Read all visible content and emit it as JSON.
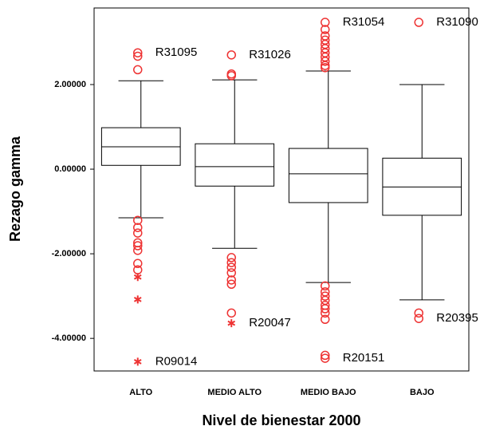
{
  "chart_data": {
    "type": "box",
    "xlabel": "Nivel de bienestar 2000",
    "ylabel": "Rezago gamma",
    "categories": [
      "ALTO",
      "MEDIO ALTO",
      "MEDIO BAJO",
      "BAJO"
    ],
    "whisker_low": [
      -1.15,
      -1.87,
      -2.68,
      -3.09
    ],
    "q1": [
      0.09,
      -0.4,
      -0.79,
      -1.09
    ],
    "median": [
      0.53,
      0.06,
      -0.11,
      -0.42
    ],
    "q3": [
      0.98,
      0.6,
      0.49,
      0.26
    ],
    "whisker_high": [
      2.09,
      2.11,
      2.32,
      2.0
    ],
    "outliers": [
      [
        {
          "value": 2.75,
          "marker": "circle",
          "label": "R31095"
        },
        {
          "value": 2.67,
          "marker": "circle"
        },
        {
          "value": 2.35,
          "marker": "circle"
        },
        {
          "value": -1.21,
          "marker": "circle"
        },
        {
          "value": -1.38,
          "marker": "circle"
        },
        {
          "value": -1.51,
          "marker": "circle"
        },
        {
          "value": -1.74,
          "marker": "circle"
        },
        {
          "value": -1.81,
          "marker": "circle"
        },
        {
          "value": -1.92,
          "marker": "circle"
        },
        {
          "value": -2.23,
          "marker": "circle"
        },
        {
          "value": -2.38,
          "marker": "circle"
        },
        {
          "value": -2.55,
          "marker": "star"
        },
        {
          "value": -3.08,
          "marker": "star"
        },
        {
          "value": -4.55,
          "marker": "star",
          "label": "R09014"
        }
      ],
      [
        {
          "value": 2.7,
          "marker": "circle",
          "label": "R31026"
        },
        {
          "value": 2.25,
          "marker": "circle"
        },
        {
          "value": 2.21,
          "marker": "circle"
        },
        {
          "value": -2.09,
          "marker": "circle"
        },
        {
          "value": -2.21,
          "marker": "circle"
        },
        {
          "value": -2.32,
          "marker": "circle"
        },
        {
          "value": -2.45,
          "marker": "circle"
        },
        {
          "value": -2.62,
          "marker": "circle"
        },
        {
          "value": -2.72,
          "marker": "circle"
        },
        {
          "value": -3.4,
          "marker": "circle"
        },
        {
          "value": -3.64,
          "marker": "star",
          "label": "R20047"
        }
      ],
      [
        {
          "value": 3.47,
          "marker": "circle",
          "label": "R31054"
        },
        {
          "value": 3.3,
          "marker": "circle"
        },
        {
          "value": 3.15,
          "marker": "circle"
        },
        {
          "value": 3.05,
          "marker": "circle"
        },
        {
          "value": 2.95,
          "marker": "circle"
        },
        {
          "value": 2.85,
          "marker": "circle"
        },
        {
          "value": 2.75,
          "marker": "circle"
        },
        {
          "value": 2.65,
          "marker": "circle"
        },
        {
          "value": 2.55,
          "marker": "circle"
        },
        {
          "value": 2.45,
          "marker": "circle"
        },
        {
          "value": 2.4,
          "marker": "circle"
        },
        {
          "value": -2.76,
          "marker": "circle"
        },
        {
          "value": -2.9,
          "marker": "circle"
        },
        {
          "value": -3.0,
          "marker": "circle"
        },
        {
          "value": -3.1,
          "marker": "circle"
        },
        {
          "value": -3.22,
          "marker": "circle"
        },
        {
          "value": -3.3,
          "marker": "circle"
        },
        {
          "value": -3.4,
          "marker": "circle"
        },
        {
          "value": -3.55,
          "marker": "circle"
        },
        {
          "value": -4.4,
          "marker": "circle"
        },
        {
          "value": -4.47,
          "marker": "circle",
          "label": "R20151"
        }
      ],
      [
        {
          "value": 3.47,
          "marker": "circle",
          "label": "R31090"
        },
        {
          "value": -3.4,
          "marker": "circle"
        },
        {
          "value": -3.53,
          "marker": "circle",
          "label": "R20395"
        }
      ]
    ],
    "outlier_color": "#ee3333",
    "ylim": [
      -4.77,
      3.81
    ],
    "yticks": [
      {
        "value": 2,
        "label": "2.00000"
      },
      {
        "value": 0,
        "label": "0.00000"
      },
      {
        "value": -2,
        "label": "-2.00000"
      },
      {
        "value": -4,
        "label": "-4.00000"
      }
    ]
  }
}
